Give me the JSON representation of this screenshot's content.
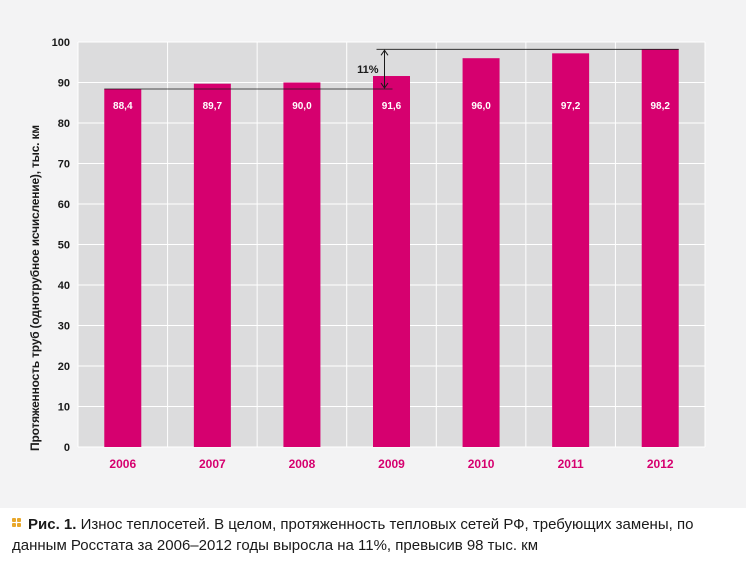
{
  "chart_data": {
    "type": "bar",
    "categories": [
      "2006",
      "2007",
      "2008",
      "2009",
      "2010",
      "2011",
      "2012"
    ],
    "values": [
      88.4,
      89.7,
      90.0,
      91.6,
      96.0,
      97.2,
      98.2
    ],
    "value_labels": [
      "88,4",
      "89,7",
      "90,0",
      "91,6",
      "96,0",
      "97,2",
      "98,2"
    ],
    "ylabel": "Протяженность труб (однотрубное исчисление), тыс. км",
    "ylim": [
      0,
      100
    ],
    "yticks": [
      "0",
      "10",
      "20",
      "30",
      "40",
      "50",
      "60",
      "70",
      "80",
      "90",
      "100"
    ],
    "grid": true,
    "bar_color": "#d6006f",
    "category_label_color": "#d6006f",
    "annotation": "11%"
  },
  "caption": {
    "figure_label": "Рис. 1.",
    "text": "Износ теплосетей. В целом, протяженность тепловых сетей РФ, требующих замены, по данным Росстата за 2006–2012 годы выросла на 11%, превысив 98 тыс. км",
    "marker_color": "#e8a72a"
  }
}
